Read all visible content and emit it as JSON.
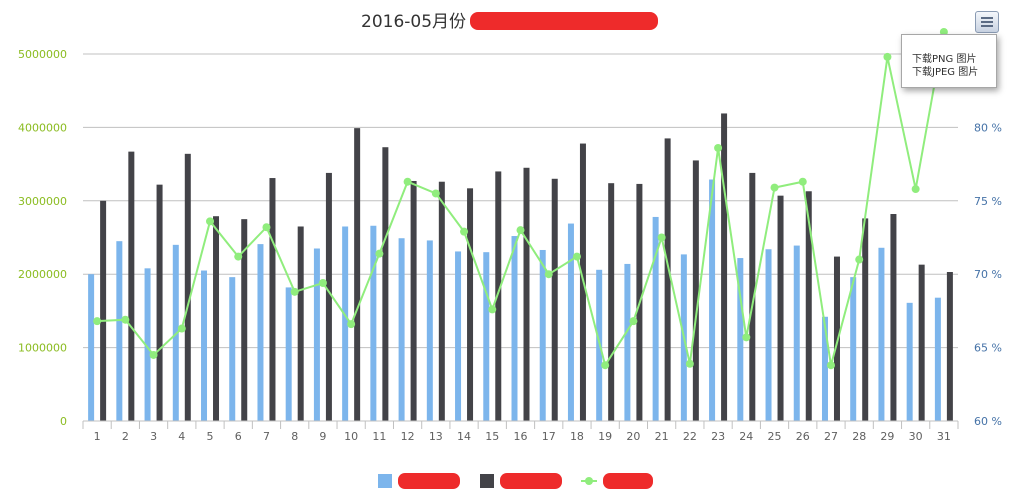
{
  "menu": {
    "items": [
      "下载PNG 图片",
      "下载JPEG 图片"
    ],
    "icon": "hamburger-menu-icon"
  },
  "colors": {
    "series1": "#7cb5ec",
    "series2": "#434348",
    "series3": "#90ed7d",
    "grid": "#c0c0c0",
    "left_axis_text": "#8bbc21",
    "right_axis_text": "#4572a7",
    "x_axis_text": "#606060",
    "redaction": "#ee2b2b"
  },
  "chart_data": {
    "type": "bar",
    "title": "2016-05月份",
    "x": [
      "1",
      "2",
      "3",
      "4",
      "5",
      "6",
      "7",
      "8",
      "9",
      "10",
      "11",
      "12",
      "13",
      "14",
      "15",
      "16",
      "17",
      "18",
      "19",
      "20",
      "21",
      "22",
      "23",
      "24",
      "25",
      "26",
      "27",
      "28",
      "29",
      "30",
      "31"
    ],
    "y_left": {
      "ticks": [
        "0",
        "1000000",
        "2000000",
        "3000000",
        "4000000",
        "5000000"
      ],
      "range": [
        0,
        5000000
      ]
    },
    "y_right": {
      "ticks": [
        "60 %",
        "65 %",
        "70 %",
        "75 %",
        "80 %"
      ],
      "range": [
        60,
        85
      ]
    },
    "series": [
      {
        "type": "bar",
        "axis": "left",
        "values": [
          2000000,
          2450000,
          2080000,
          2400000,
          2050000,
          1960000,
          2410000,
          1820000,
          2350000,
          2650000,
          2660000,
          2490000,
          2460000,
          2310000,
          2300000,
          2520000,
          2330000,
          2690000,
          2060000,
          2140000,
          2780000,
          2270000,
          3290000,
          2220000,
          2340000,
          2390000,
          1420000,
          1960000,
          2360000,
          1610000,
          1680000
        ]
      },
      {
        "type": "bar",
        "axis": "left",
        "values": [
          3000000,
          3670000,
          3220000,
          3640000,
          2790000,
          2750000,
          3310000,
          2650000,
          3380000,
          3990000,
          3730000,
          3270000,
          3260000,
          3170000,
          3400000,
          3450000,
          3300000,
          3780000,
          3240000,
          3230000,
          3850000,
          3550000,
          4190000,
          3380000,
          3070000,
          3130000,
          2240000,
          2760000,
          2820000,
          2130000,
          2030000
        ]
      },
      {
        "type": "line",
        "axis": "right",
        "values": [
          66.8,
          66.9,
          64.5,
          66.3,
          73.6,
          71.2,
          73.2,
          68.8,
          69.4,
          66.6,
          71.4,
          76.3,
          75.5,
          72.9,
          67.6,
          73.0,
          70.0,
          71.2,
          63.8,
          66.8,
          72.5,
          63.9,
          78.6,
          65.7,
          75.9,
          76.3,
          63.8,
          71.0,
          84.8,
          75.8,
          86.5
        ]
      }
    ],
    "grid": true,
    "legend": "bottom-center"
  }
}
